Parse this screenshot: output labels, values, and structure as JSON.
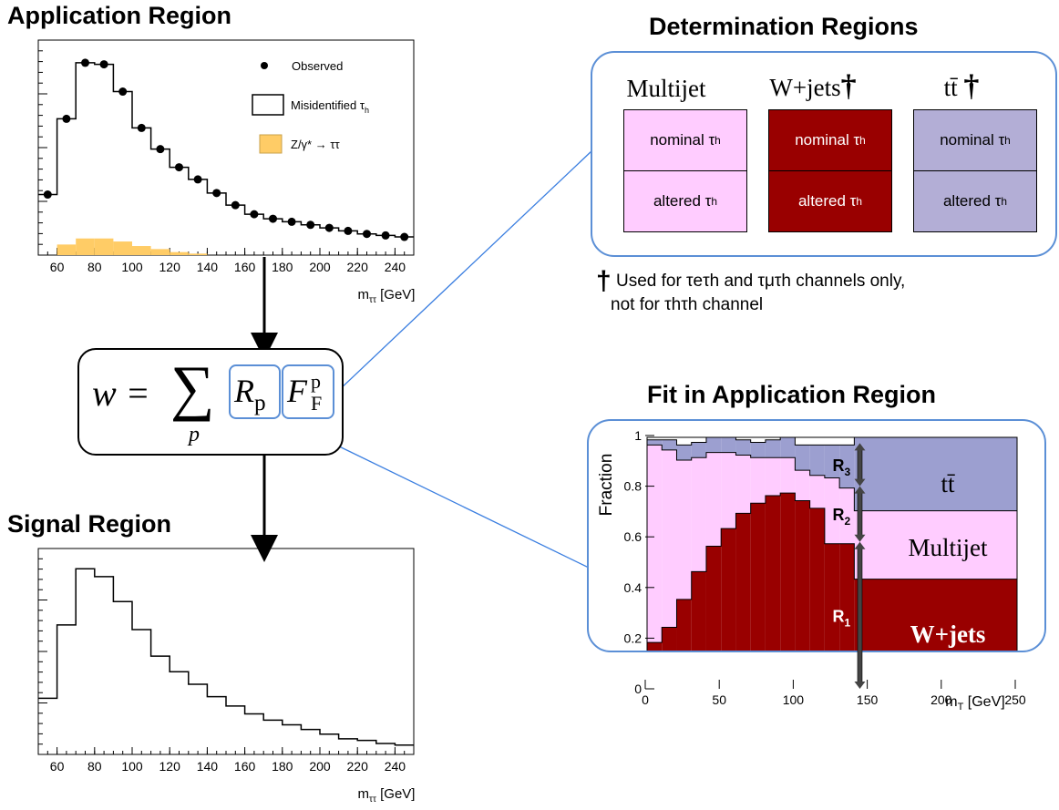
{
  "titles": {
    "application": "Application Region",
    "signal": "Signal Region",
    "determination": "Determination Regions",
    "fit": "Fit in Application Region"
  },
  "application_plot": {
    "xlabel": "m",
    "xlabel_sub": "ττ",
    "xlabel_unit": " [GeV]",
    "xticks": [
      "60",
      "80",
      "100",
      "120",
      "140",
      "160",
      "180",
      "200",
      "220",
      "240"
    ],
    "legend": {
      "observed": "Observed",
      "misid": "Misidentified τ",
      "misid_sub": "h",
      "ztt": "Z/γ* → ττ"
    }
  },
  "signal_plot": {
    "xlabel": "m",
    "xlabel_sub": "ττ",
    "xlabel_unit": " [GeV]",
    "xticks": [
      "60",
      "80",
      "100",
      "120",
      "140",
      "160",
      "180",
      "200",
      "220",
      "240"
    ]
  },
  "determination": {
    "columns": [
      {
        "label": "Multijet",
        "dagger": "",
        "color": "#ffccff",
        "dark": false
      },
      {
        "label": "W+jets",
        "dagger": "†",
        "color": "#990000",
        "dark": true
      },
      {
        "label": "tt̄",
        "dagger": "†",
        "color": "#b3aed6",
        "dark": false
      }
    ],
    "nominal": "nominal τ",
    "altered": "altered τ",
    "sub_h": "h",
    "footnote_dagger": "†",
    "footnote_line1": "Used for τeτh and τμτh channels only,",
    "footnote_line2": "not for τhτh channel"
  },
  "formula": {
    "lhs": "w =",
    "sum": "∑",
    "index": "p",
    "R": "R",
    "R_sub": "p",
    "F": "F",
    "F_sub": "F",
    "F_sup": "p"
  },
  "fit_plot": {
    "ylabel": "Fraction",
    "xlabel": "m",
    "xlabel_sub": "T",
    "xlabel_unit": " [GeV]",
    "yticks": [
      "0",
      "0.2",
      "0.4",
      "0.6",
      "0.8",
      "1"
    ],
    "xticks": [
      "0",
      "50",
      "100",
      "150",
      "200",
      "250"
    ],
    "labels": {
      "ttbar": "tt̄",
      "multijet": "Multijet",
      "wjets": "W+jets"
    },
    "arrows": [
      "R",
      "R",
      "R"
    ],
    "arrow_subs": [
      "1",
      "2",
      "3"
    ],
    "colors": {
      "wjets": "#990000",
      "multijet": "#ffccff",
      "ttbar": "#9c9fd0"
    }
  },
  "chart_data": [
    {
      "type": "bar",
      "title": "Application Region",
      "xlabel": "m_ττ [GeV]",
      "xlim": [
        50,
        250
      ],
      "series": [
        {
          "name": "Observed",
          "style": "points",
          "x": [
            55,
            65,
            75,
            85,
            95,
            105,
            115,
            125,
            135,
            145,
            155,
            165,
            175,
            185,
            195,
            205,
            215,
            225,
            235,
            245
          ],
          "values": [
            0.4,
            0.9,
            1.27,
            1.26,
            1.08,
            0.84,
            0.7,
            0.58,
            0.5,
            0.41,
            0.33,
            0.27,
            0.24,
            0.22,
            0.2,
            0.18,
            0.16,
            0.14,
            0.13,
            0.12
          ]
        },
        {
          "name": "Misidentified τh",
          "style": "step",
          "x": [
            55,
            65,
            75,
            85,
            95,
            105,
            115,
            125,
            135,
            145,
            155,
            165,
            175,
            185,
            195,
            205,
            215,
            225,
            235,
            245
          ],
          "values": [
            0.4,
            0.9,
            1.27,
            1.26,
            1.08,
            0.84,
            0.7,
            0.58,
            0.5,
            0.41,
            0.33,
            0.27,
            0.24,
            0.22,
            0.2,
            0.18,
            0.16,
            0.14,
            0.13,
            0.12
          ]
        },
        {
          "name": "Z/γ* → ττ",
          "style": "filled",
          "x": [
            55,
            65,
            75,
            85,
            95,
            105,
            115,
            125,
            135,
            145
          ],
          "values": [
            0.0,
            0.07,
            0.11,
            0.11,
            0.09,
            0.06,
            0.04,
            0.02,
            0.01,
            0.0
          ]
        }
      ]
    },
    {
      "type": "bar",
      "title": "Signal Region",
      "xlabel": "m_ττ [GeV]",
      "xlim": [
        50,
        250
      ],
      "series": [
        {
          "name": "",
          "style": "step",
          "x": [
            55,
            65,
            75,
            85,
            95,
            105,
            115,
            125,
            135,
            145,
            155,
            165,
            175,
            185,
            195,
            205,
            215,
            225,
            235,
            245
          ],
          "values": [
            0.36,
            0.83,
            1.19,
            1.14,
            0.98,
            0.8,
            0.63,
            0.53,
            0.45,
            0.37,
            0.31,
            0.26,
            0.22,
            0.19,
            0.16,
            0.13,
            0.1,
            0.09,
            0.07,
            0.06
          ]
        }
      ]
    },
    {
      "type": "area",
      "title": "Fit in Application Region",
      "xlabel": "m_T [GeV]",
      "ylabel": "Fraction",
      "xlim": [
        0,
        250
      ],
      "ylim": [
        0,
        1
      ],
      "x_edges": [
        0,
        10,
        20,
        30,
        40,
        50,
        60,
        70,
        80,
        90,
        100,
        110,
        120,
        130,
        140,
        250
      ],
      "series": [
        {
          "name": "W+jets",
          "values": [
            0.19,
            0.25,
            0.36,
            0.47,
            0.57,
            0.64,
            0.7,
            0.74,
            0.77,
            0.78,
            0.75,
            0.72,
            0.58,
            0.58,
            0.44
          ]
        },
        {
          "name": "Multijet",
          "values": [
            0.78,
            0.7,
            0.55,
            0.45,
            0.37,
            0.3,
            0.23,
            0.18,
            0.15,
            0.14,
            0.12,
            0.13,
            0.26,
            0.22,
            0.27
          ]
        },
        {
          "name": "tt̄",
          "values": [
            0.02,
            0.04,
            0.06,
            0.06,
            0.06,
            0.06,
            0.06,
            0.06,
            0.07,
            0.08,
            0.1,
            0.12,
            0.13,
            0.17,
            0.29
          ]
        }
      ]
    }
  ]
}
